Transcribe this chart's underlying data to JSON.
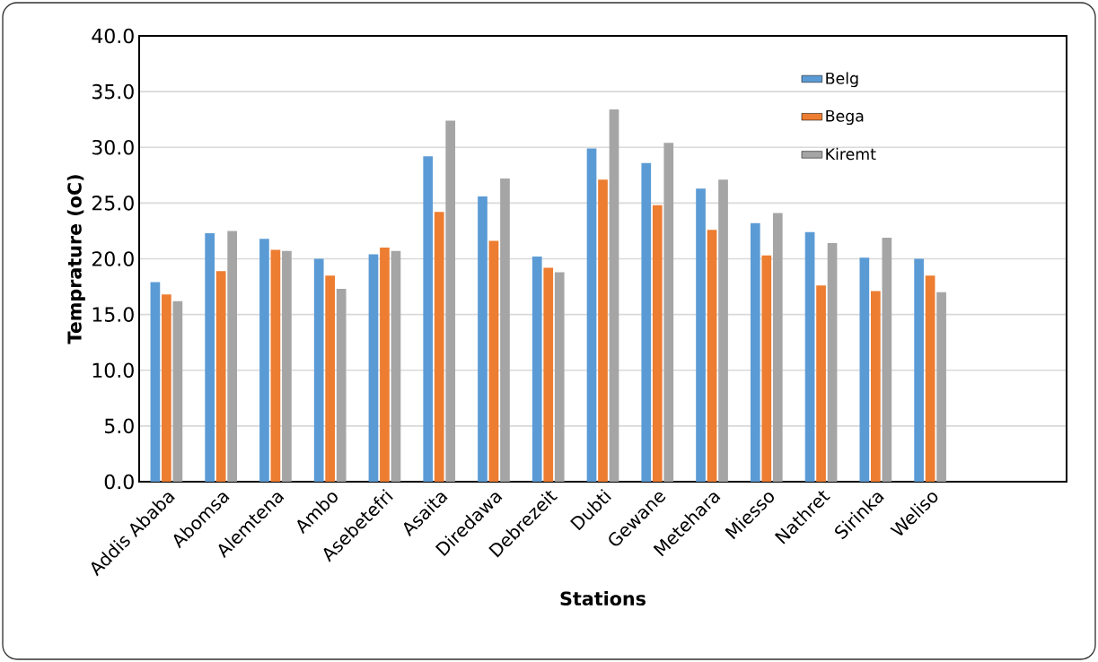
{
  "chart_data": {
    "type": "bar",
    "xlabel": "Stations",
    "ylabel": "Temprature (oC)",
    "categories": [
      "Addis Ababa",
      "Abomsa",
      "Alemtena",
      "Ambo",
      "Asebetefri",
      "Asaita",
      "Diredawa",
      "Debrezeit",
      "Dubti",
      "Gewane",
      "Metehara",
      "Miesso",
      "Nathret",
      "Sirinka",
      "Weliso",
      null,
      null
    ],
    "series": [
      {
        "name": "Belg",
        "color": "#5b9bd5",
        "values": [
          17.9,
          22.3,
          21.8,
          20.0,
          20.4,
          29.2,
          25.6,
          20.2,
          29.9,
          28.6,
          26.3,
          23.2,
          22.4,
          20.1,
          20.0,
          null,
          null
        ]
      },
      {
        "name": "Bega",
        "color": "#ed7d31",
        "values": [
          16.8,
          18.9,
          20.8,
          18.5,
          21.0,
          24.2,
          21.6,
          19.2,
          27.1,
          24.8,
          22.6,
          20.3,
          17.6,
          17.1,
          18.5,
          null,
          null
        ]
      },
      {
        "name": "Kiremt",
        "color": "#a5a5a5",
        "values": [
          16.2,
          22.5,
          20.7,
          17.3,
          20.7,
          32.4,
          27.2,
          18.8,
          33.4,
          30.4,
          27.1,
          24.1,
          21.4,
          21.9,
          17.0,
          null,
          null
        ]
      }
    ],
    "ylim": [
      0,
      40
    ],
    "yticks": [
      {
        "value": 0,
        "label": "0.0"
      },
      {
        "value": 5,
        "label": "5.0"
      },
      {
        "value": 10,
        "label": "10.0"
      },
      {
        "value": 15,
        "label": "15.0"
      },
      {
        "value": 20,
        "label": "20.0"
      },
      {
        "value": 25,
        "label": "25.0"
      },
      {
        "value": 30,
        "label": "30.0"
      },
      {
        "value": 35,
        "label": "35.0"
      },
      {
        "value": 40,
        "label": "40.0"
      }
    ],
    "grid": "y",
    "legend": "top right"
  }
}
